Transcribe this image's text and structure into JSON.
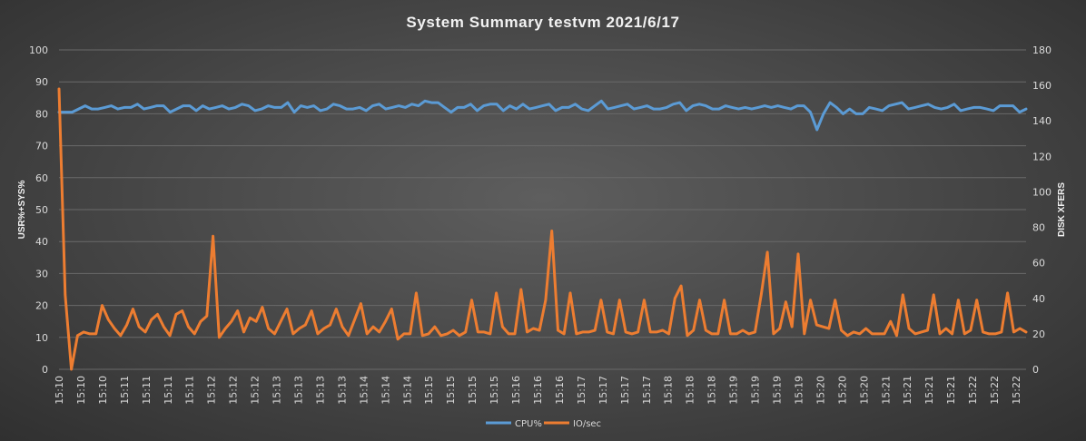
{
  "chart_data": {
    "type": "line",
    "title": "System Summary testvm  2021/6/17",
    "ylabel": "USR%+SYS%",
    "y2label": "DISK XFERS",
    "ylim": [
      0,
      100
    ],
    "y2lim": [
      0,
      180
    ],
    "yticks": [
      0,
      10,
      20,
      30,
      40,
      50,
      60,
      70,
      80,
      90,
      100
    ],
    "y2ticks": [
      0,
      20,
      40,
      60,
      80,
      100,
      120,
      140,
      160,
      180
    ],
    "xtick_labels": [
      "15:10",
      "15:10",
      "15:10",
      "15:11",
      "15:11",
      "15:11",
      "15:11",
      "15:12",
      "15:12",
      "15:12",
      "15:13",
      "15:13",
      "15:13",
      "15:13",
      "15:14",
      "15:14",
      "15:14",
      "15:15",
      "15:15",
      "15:15",
      "15:15",
      "15:16",
      "15:16",
      "15:16",
      "15:17",
      "15:17",
      "15:17",
      "15:17",
      "15:18",
      "15:18",
      "15:18",
      "15:19",
      "15:19",
      "15:19",
      "15:19",
      "15:20",
      "15:20",
      "15:20",
      "15:21",
      "15:21",
      "15:21",
      "15:21",
      "15:22",
      "15:22",
      "15:22"
    ],
    "grid": true,
    "legend_position": "bottom",
    "series": [
      {
        "name": "CPU%",
        "axis": "left",
        "color": "#5b9bd5",
        "values": [
          80.5,
          80.5,
          80.5,
          81.5,
          82.5,
          81.5,
          81.5,
          82,
          82.5,
          81.5,
          82,
          82,
          83,
          81.5,
          82,
          82.5,
          82.5,
          80.5,
          81.5,
          82.5,
          82.5,
          81,
          82.5,
          81.5,
          82,
          82.5,
          81.5,
          82,
          83,
          82.5,
          81,
          81.5,
          82.5,
          82,
          82,
          83.5,
          80.5,
          82.5,
          82,
          82.5,
          81,
          81.5,
          83,
          82.5,
          81.5,
          81.5,
          82,
          81,
          82.5,
          83,
          81.5,
          82,
          82.5,
          82,
          83,
          82.5,
          84,
          83.5,
          83.5,
          82,
          80.5,
          82,
          82,
          83,
          81,
          82.5,
          83,
          83,
          81,
          82.5,
          81.5,
          83,
          81.5,
          82,
          82.5,
          83,
          81,
          82,
          82,
          83,
          81.5,
          81,
          82.5,
          84,
          81.5,
          82,
          82.5,
          83,
          81.5,
          82,
          82.5,
          81.5,
          81.5,
          82,
          83,
          83.5,
          81,
          82.5,
          83,
          82.5,
          81.5,
          81.5,
          82.5,
          82,
          81.5,
          82,
          81.5,
          82,
          82.5,
          82,
          82.5,
          82,
          81.5,
          82.5,
          82.5,
          80.5,
          75,
          80,
          83.5,
          82,
          80,
          81.5,
          80,
          80,
          82,
          81.5,
          81,
          82.5,
          83,
          83.5,
          81.5,
          82,
          82.5,
          83,
          82,
          81.5,
          82,
          83,
          81,
          81.5,
          82,
          82,
          81.5,
          81,
          82.5,
          82.5,
          82.5,
          80.5,
          81.5
        ]
      },
      {
        "name": "IO/sec",
        "axis": "right",
        "color": "#ed7d31",
        "values": [
          158,
          42,
          0,
          19,
          21,
          20,
          20,
          36,
          28,
          23,
          19,
          25,
          34,
          24,
          21,
          28,
          31,
          24,
          19,
          31,
          33,
          24,
          20,
          27,
          30,
          75,
          18,
          23,
          27,
          33,
          21,
          29,
          27,
          35,
          23,
          20,
          27,
          34,
          20,
          23,
          25,
          33,
          20,
          23,
          25,
          34,
          24,
          19,
          28,
          37,
          20,
          24,
          21,
          27,
          34,
          17,
          20,
          20,
          43,
          19,
          20,
          24,
          19,
          20,
          22,
          19,
          21,
          39,
          21,
          21,
          20,
          43,
          24,
          20,
          20,
          45,
          21,
          23,
          22,
          39,
          78,
          22,
          20,
          43,
          20,
          21,
          21,
          22,
          39,
          21,
          20,
          39,
          21,
          20,
          21,
          39,
          21,
          21,
          22,
          20,
          40,
          47,
          19,
          22,
          39,
          22,
          20,
          20,
          39,
          20,
          20,
          22,
          20,
          21,
          42,
          66,
          20,
          23,
          38,
          24,
          65,
          20,
          39,
          25,
          24,
          23,
          39,
          22,
          19,
          21,
          20,
          23,
          20,
          20,
          20,
          27,
          19,
          42,
          23,
          20,
          21,
          22,
          42,
          20,
          23,
          20,
          39,
          20,
          22,
          39,
          21,
          20,
          20,
          21,
          43,
          21,
          23,
          21
        ]
      }
    ]
  }
}
